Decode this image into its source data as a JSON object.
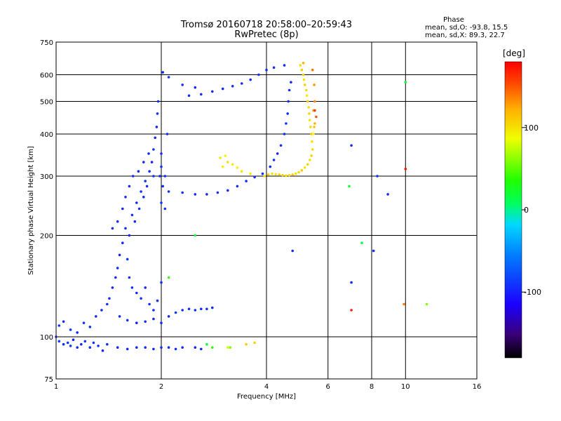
{
  "title_line1": "Tromsø 20160718 20:58:00–20:59:43",
  "title_line2": "RwPretec (8p)",
  "stats": {
    "heading": "Phase",
    "line_o": "mean, sd,O: -93.8, 15.5",
    "line_x": "mean, sd,X:  89.3, 22.7"
  },
  "colorbar": {
    "label": "[deg]",
    "range": [
      -180,
      180
    ],
    "ticks": [
      100,
      0,
      -100
    ],
    "tick_labels": [
      "100",
      "0",
      "-100"
    ]
  },
  "chart_data": {
    "type": "scatter",
    "xlabel": "Frequency [MHz]",
    "ylabel": "Stationary phase Virtual Height [km]",
    "x_scale": "log",
    "y_scale": "log",
    "xlim": [
      1,
      16
    ],
    "ylim": [
      75,
      750
    ],
    "xticks": [
      1,
      2,
      4,
      6,
      8,
      10,
      16
    ],
    "xtick_labels": [
      "1",
      "2",
      "4",
      "6",
      "8",
      "10",
      "16"
    ],
    "yticks": [
      75,
      100,
      200,
      300,
      400,
      500,
      600,
      750
    ],
    "ytick_labels": [
      "75",
      "100",
      "200",
      "300",
      "400",
      "500",
      "600",
      "750"
    ],
    "grid": true,
    "colorbar_position": "right",
    "color_variable": "phase [deg]",
    "o_trace_points": [
      [
        1.0,
        100,
        -85
      ],
      [
        1.02,
        97,
        -88
      ],
      [
        1.05,
        95,
        -95
      ],
      [
        1.08,
        96,
        -92
      ],
      [
        1.1,
        94,
        -90
      ],
      [
        1.12,
        98,
        -100
      ],
      [
        1.15,
        93,
        -95
      ],
      [
        1.18,
        95,
        -98
      ],
      [
        1.21,
        97,
        -90
      ],
      [
        1.25,
        93,
        -94
      ],
      [
        1.28,
        96,
        -96
      ],
      [
        1.32,
        94,
        -92
      ],
      [
        1.36,
        91,
        -98
      ],
      [
        1.4,
        95,
        -93
      ],
      [
        1.02,
        108,
        -90
      ],
      [
        1.05,
        111,
        -95
      ],
      [
        1.1,
        105,
        -92
      ],
      [
        1.15,
        103,
        -99
      ],
      [
        1.2,
        110,
        -88
      ],
      [
        1.25,
        107,
        -93
      ],
      [
        1.3,
        115,
        -95
      ],
      [
        1.35,
        120,
        -97
      ],
      [
        1.4,
        125,
        -92
      ],
      [
        1.42,
        130,
        -90
      ],
      [
        1.45,
        140,
        -96
      ],
      [
        1.48,
        150,
        -94
      ],
      [
        1.5,
        160,
        -92
      ],
      [
        1.52,
        175,
        -99
      ],
      [
        1.55,
        190,
        -95
      ],
      [
        1.58,
        210,
        -93
      ],
      [
        1.62,
        200,
        -97
      ],
      [
        1.65,
        230,
        -92
      ],
      [
        1.68,
        220,
        -95
      ],
      [
        1.7,
        250,
        -98
      ],
      [
        1.73,
        240,
        -91
      ],
      [
        1.75,
        270,
        -94
      ],
      [
        1.78,
        260,
        -96
      ],
      [
        1.8,
        290,
        -90
      ],
      [
        1.82,
        280,
        -95
      ],
      [
        1.85,
        310,
        -93
      ],
      [
        1.88,
        330,
        -97
      ],
      [
        1.9,
        360,
        -92
      ],
      [
        1.92,
        390,
        -94
      ],
      [
        1.94,
        420,
        -96
      ],
      [
        1.95,
        460,
        -92
      ],
      [
        1.96,
        500,
        -95
      ],
      [
        1.98,
        300,
        -93
      ],
      [
        2.0,
        320,
        -90
      ],
      [
        2.02,
        280,
        -94
      ],
      [
        2.05,
        300,
        -96
      ],
      [
        2.02,
        610,
        -98
      ],
      [
        1.6,
        170,
        -92
      ],
      [
        1.62,
        150,
        -95
      ],
      [
        1.65,
        140,
        -94
      ],
      [
        1.7,
        135,
        -97
      ],
      [
        1.75,
        130,
        -92
      ],
      [
        1.8,
        140,
        -95
      ],
      [
        1.85,
        125,
        -93
      ],
      [
        1.9,
        120,
        -96
      ],
      [
        1.95,
        128,
        -91
      ],
      [
        2.0,
        145,
        -94
      ],
      [
        1.52,
        115,
        -95
      ],
      [
        1.6,
        112,
        -93
      ],
      [
        1.7,
        110,
        -98
      ],
      [
        1.8,
        111,
        -92
      ],
      [
        1.9,
        113,
        -95
      ],
      [
        2.0,
        110,
        -94
      ],
      [
        2.1,
        115,
        -96
      ],
      [
        2.2,
        118,
        -92
      ],
      [
        2.3,
        120,
        -95
      ],
      [
        2.4,
        121,
        -93
      ],
      [
        2.5,
        120,
        -96
      ],
      [
        2.6,
        121,
        -94
      ],
      [
        2.7,
        121,
        -91
      ],
      [
        2.8,
        122,
        -95
      ],
      [
        2.0,
        93,
        -93
      ],
      [
        1.5,
        93,
        -95
      ],
      [
        1.6,
        92,
        -96
      ],
      [
        1.7,
        93,
        -94
      ],
      [
        1.8,
        93,
        -92
      ],
      [
        1.9,
        92,
        -97
      ],
      [
        2.1,
        93,
        -95
      ],
      [
        2.2,
        92,
        -94
      ],
      [
        2.3,
        93,
        -93
      ],
      [
        2.5,
        93,
        -96
      ],
      [
        2.6,
        92,
        -95
      ],
      [
        2.1,
        270,
        -94
      ],
      [
        2.3,
        268,
        -93
      ],
      [
        2.5,
        265,
        -95
      ],
      [
        2.7,
        265,
        -96
      ],
      [
        2.9,
        268,
        -92
      ],
      [
        3.1,
        272,
        -95
      ],
      [
        3.3,
        280,
        -93
      ],
      [
        3.5,
        290,
        -94
      ],
      [
        3.7,
        298,
        -96
      ],
      [
        3.9,
        305,
        -92
      ],
      [
        4.1,
        320,
        -95
      ],
      [
        4.2,
        335,
        -94
      ],
      [
        4.3,
        350,
        -97
      ],
      [
        4.4,
        370,
        -93
      ],
      [
        4.5,
        400,
        -95
      ],
      [
        4.55,
        430,
        -92
      ],
      [
        4.6,
        460,
        -96
      ],
      [
        4.62,
        500,
        -94
      ],
      [
        4.65,
        540,
        -93
      ],
      [
        4.7,
        570,
        -95
      ],
      [
        2.4,
        520,
        -94
      ],
      [
        2.6,
        525,
        -93
      ],
      [
        2.8,
        535,
        -95
      ],
      [
        3.0,
        545,
        -96
      ],
      [
        3.2,
        555,
        -92
      ],
      [
        3.4,
        565,
        -95
      ],
      [
        3.6,
        580,
        -94
      ],
      [
        3.8,
        600,
        -93
      ],
      [
        4.0,
        620,
        -96
      ],
      [
        4.2,
        630,
        -95
      ],
      [
        4.5,
        640,
        -94
      ],
      [
        2.3,
        560,
        -92
      ],
      [
        2.5,
        550,
        -95
      ],
      [
        2.1,
        590,
        -94
      ],
      [
        1.45,
        210,
        -95
      ],
      [
        1.5,
        220,
        -93
      ],
      [
        1.55,
        240,
        -96
      ],
      [
        1.58,
        260,
        -92
      ],
      [
        1.62,
        280,
        -95
      ],
      [
        1.66,
        300,
        -94
      ],
      [
        1.72,
        310,
        -93
      ],
      [
        1.78,
        330,
        -95
      ],
      [
        1.84,
        350,
        -96
      ],
      [
        1.9,
        300,
        -94
      ],
      [
        2.0,
        250,
        -93
      ],
      [
        2.0,
        350,
        -95
      ],
      [
        2.05,
        240,
        -92
      ],
      [
        2.08,
        400,
        -95
      ],
      [
        7.0,
        370,
        -95
      ],
      [
        8.3,
        300,
        -93
      ],
      [
        7.0,
        145,
        -96
      ],
      [
        4.75,
        180,
        -95
      ],
      [
        8.9,
        265,
        -94
      ],
      [
        8.1,
        180,
        -95
      ]
    ],
    "x_trace_points": [
      [
        5.0,
        640,
        100
      ],
      [
        5.05,
        620,
        110
      ],
      [
        5.1,
        600,
        105
      ],
      [
        5.12,
        580,
        98
      ],
      [
        5.15,
        560,
        108
      ],
      [
        5.2,
        540,
        103
      ],
      [
        5.22,
        520,
        95
      ],
      [
        5.25,
        500,
        112
      ],
      [
        5.28,
        480,
        100
      ],
      [
        5.3,
        460,
        106
      ],
      [
        5.32,
        440,
        97
      ],
      [
        5.35,
        420,
        104
      ],
      [
        5.38,
        400,
        110
      ],
      [
        5.4,
        380,
        99
      ],
      [
        5.42,
        360,
        102
      ],
      [
        5.38,
        345,
        108
      ],
      [
        5.32,
        335,
        100
      ],
      [
        5.25,
        325,
        105
      ],
      [
        5.15,
        318,
        98
      ],
      [
        5.05,
        312,
        110
      ],
      [
        4.95,
        308,
        103
      ],
      [
        4.85,
        305,
        100
      ],
      [
        4.75,
        303,
        107
      ],
      [
        4.65,
        302,
        99
      ],
      [
        4.55,
        301,
        104
      ],
      [
        4.45,
        302,
        101
      ],
      [
        4.35,
        303,
        106
      ],
      [
        4.25,
        304,
        98
      ],
      [
        4.15,
        305,
        102
      ],
      [
        4.05,
        303,
        108
      ],
      [
        3.95,
        300,
        100
      ],
      [
        3.6,
        305,
        95
      ],
      [
        3.4,
        310,
        97
      ],
      [
        3.3,
        318,
        92
      ],
      [
        3.2,
        325,
        96
      ],
      [
        3.1,
        330,
        100
      ],
      [
        3.05,
        345,
        90
      ],
      [
        3.0,
        320,
        94
      ],
      [
        2.95,
        340,
        98
      ],
      [
        5.45,
        400,
        88
      ],
      [
        5.48,
        420,
        112
      ],
      [
        5.5,
        430,
        120
      ],
      [
        5.45,
        470,
        125
      ],
      [
        5.5,
        500,
        135
      ],
      [
        5.48,
        560,
        130
      ],
      [
        5.42,
        620,
        140
      ],
      [
        5.1,
        650,
        120
      ],
      [
        3.5,
        95,
        110
      ],
      [
        3.7,
        96,
        108
      ],
      [
        3.1,
        93,
        80
      ],
      [
        3.15,
        93,
        60
      ],
      [
        2.8,
        93,
        40
      ],
      [
        2.7,
        95,
        20
      ],
      [
        5.55,
        450,
        150
      ],
      [
        5.5,
        470,
        160
      ],
      [
        7.0,
        120,
        170
      ],
      [
        9.9,
        125,
        140
      ],
      [
        11.5,
        125,
        60
      ],
      [
        10.0,
        315,
        175
      ],
      [
        10.0,
        570,
        20
      ],
      [
        6.9,
        280,
        20
      ],
      [
        7.5,
        190,
        15
      ],
      [
        2.5,
        200,
        20
      ],
      [
        2.1,
        150,
        40
      ]
    ]
  }
}
